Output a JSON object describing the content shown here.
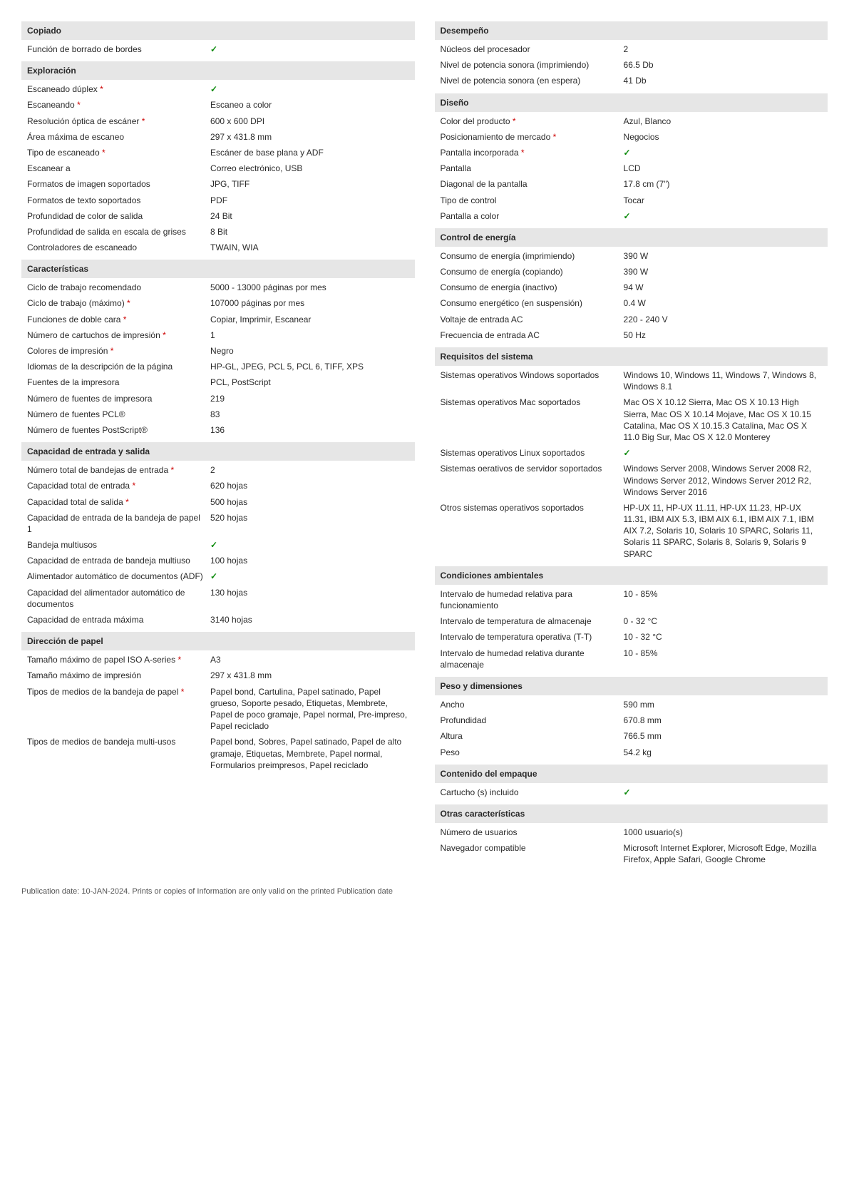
{
  "check_glyph": "✓",
  "asterisk": "*",
  "left": {
    "copiado": {
      "header": "Copiado",
      "rows": [
        {
          "label": "Función de borrado de bordes",
          "value": "✓",
          "check": true
        }
      ]
    },
    "exploracion": {
      "header": "Exploración",
      "rows": [
        {
          "label": "Escaneado dúplex",
          "ast": true,
          "value": "✓",
          "check": true
        },
        {
          "label": "Escaneando",
          "ast": true,
          "value": "Escaneo a color"
        },
        {
          "label": "Resolución óptica de escáner",
          "ast": true,
          "value": "600 x 600 DPI"
        },
        {
          "label": "Área máxima de escaneo",
          "value": "297 x 431.8 mm"
        },
        {
          "label": "Tipo de escaneado",
          "ast": true,
          "value": "Escáner de base plana y ADF"
        },
        {
          "label": "Escanear a",
          "value": "Correo electrónico, USB"
        },
        {
          "label": "Formatos de imagen soportados",
          "value": "JPG, TIFF"
        },
        {
          "label": "Formatos de texto soportados",
          "value": "PDF"
        },
        {
          "label": "Profundidad de color de salida",
          "value": "24 Bit"
        },
        {
          "label": "Profundidad de salida en escala de grises",
          "value": "8 Bit"
        },
        {
          "label": "Controladores de escaneado",
          "value": "TWAIN, WIA"
        }
      ]
    },
    "caracteristicas": {
      "header": "Características",
      "rows": [
        {
          "label": "Ciclo de trabajo recomendado",
          "value": "5000 - 13000 páginas por mes"
        },
        {
          "label": "Ciclo de trabajo (máximo)",
          "ast": true,
          "value": "107000 páginas por mes"
        },
        {
          "label": "Funciones de doble cara",
          "ast": true,
          "value": "Copiar, Imprimir, Escanear"
        },
        {
          "label": "Número de cartuchos de impresión",
          "ast": true,
          "value": "1"
        },
        {
          "label": "Colores de impresión",
          "ast": true,
          "value": "Negro"
        },
        {
          "label": "Idiomas de la descripción de la página",
          "value": "HP-GL, JPEG, PCL 5, PCL 6, TIFF, XPS"
        },
        {
          "label": "Fuentes de la impresora",
          "value": "PCL, PostScript"
        },
        {
          "label": "Número de fuentes de impresora",
          "value": "219"
        },
        {
          "label": "Número de fuentes PCL®",
          "value": "83"
        },
        {
          "label": "Número de fuentes PostScript®",
          "value": "136"
        }
      ]
    },
    "capacidad": {
      "header": "Capacidad de entrada y salida",
      "rows": [
        {
          "label": "Número total de bandejas de entrada",
          "ast": true,
          "value": "2"
        },
        {
          "label": "Capacidad total de entrada",
          "ast": true,
          "value": "620 hojas"
        },
        {
          "label": "Capacidad total de salida",
          "ast": true,
          "value": "500 hojas"
        },
        {
          "label": "Capacidad de entrada de la bandeja de papel 1",
          "value": "520 hojas"
        },
        {
          "label": "Bandeja multiusos",
          "value": "✓",
          "check": true
        },
        {
          "label": "Capacidad de entrada de bandeja multiuso",
          "value": "100 hojas"
        },
        {
          "label": "Alimentador automático de documentos (ADF)",
          "value": "✓",
          "check": true
        },
        {
          "label": "Capacidad del alimentador automático de documentos",
          "value": "130 hojas"
        },
        {
          "label": "Capacidad de entrada máxima",
          "value": "3140 hojas"
        }
      ]
    },
    "direccion": {
      "header": "Dirección de papel",
      "rows": [
        {
          "label": "Tamaño máximo de papel ISO A-series",
          "ast": true,
          "value": "A3"
        },
        {
          "label": "Tamaño máximo de impresión",
          "value": "297 x 431.8 mm"
        },
        {
          "label": "Tipos de medios de la bandeja de papel",
          "ast": true,
          "value": "Papel bond, Cartulina, Papel satinado, Papel grueso, Soporte pesado, Etiquetas, Membrete, Papel de poco gramaje, Papel normal, Pre-impreso, Papel reciclado"
        },
        {
          "label": "Tipos de medios de bandeja multi-usos",
          "value": "Papel bond, Sobres, Papel satinado, Papel de alto gramaje, Etiquetas, Membrete, Papel normal, Formularios preimpresos, Papel reciclado"
        }
      ]
    }
  },
  "right": {
    "desempeno": {
      "header": "Desempeño",
      "rows": [
        {
          "label": "Núcleos del procesador",
          "value": "2"
        },
        {
          "label": "Nivel de potencia sonora (imprimiendo)",
          "value": "66.5 Db"
        },
        {
          "label": "Nivel de potencia sonora (en espera)",
          "value": "41 Db"
        }
      ]
    },
    "diseno": {
      "header": "Diseño",
      "rows": [
        {
          "label": "Color del producto",
          "ast": true,
          "value": "Azul, Blanco"
        },
        {
          "label": "Posicionamiento de mercado",
          "ast": true,
          "value": "Negocios"
        },
        {
          "label": "Pantalla incorporada",
          "ast": true,
          "value": "✓",
          "check": true
        },
        {
          "label": "Pantalla",
          "value": "LCD"
        },
        {
          "label": "Diagonal de la pantalla",
          "value": "17.8 cm (7\")"
        },
        {
          "label": "Tipo de control",
          "value": "Tocar"
        },
        {
          "label": "Pantalla a color",
          "value": "✓",
          "check": true
        }
      ]
    },
    "energia": {
      "header": "Control de energía",
      "rows": [
        {
          "label": "Consumo de energía (imprimiendo)",
          "value": "390 W"
        },
        {
          "label": "Consumo de energía (copiando)",
          "value": "390 W"
        },
        {
          "label": "Consumo de energía (inactivo)",
          "value": "94 W"
        },
        {
          "label": "Consumo energético (en suspensión)",
          "value": "0.4 W"
        },
        {
          "label": "Voltaje de entrada AC",
          "value": "220 - 240 V"
        },
        {
          "label": "Frecuencia de entrada AC",
          "value": "50 Hz"
        }
      ]
    },
    "requisitos": {
      "header": "Requisitos del sistema",
      "rows": [
        {
          "label": "Sistemas operativos Windows soportados",
          "value": "Windows 10, Windows 11, Windows 7, Windows 8, Windows 8.1"
        },
        {
          "label": "Sistemas operativos Mac soportados",
          "value": "Mac OS X 10.12 Sierra, Mac OS X 10.13 High Sierra, Mac OS X 10.14 Mojave, Mac OS X 10.15 Catalina, Mac OS X 10.15.3 Catalina, Mac OS X 11.0 Big Sur, Mac OS X 12.0 Monterey"
        },
        {
          "label": "Sistemas operativos Linux soportados",
          "value": "✓",
          "check": true
        },
        {
          "label": "Sistemas oerativos de servidor soportados",
          "value": "Windows Server 2008, Windows Server 2008 R2, Windows Server 2012, Windows Server 2012 R2, Windows Server 2016"
        },
        {
          "label": "Otros sistemas operativos soportados",
          "value": "HP-UX 11, HP-UX 11.11, HP-UX 11.23, HP-UX 11.31, IBM AIX 5.3, IBM AIX 6.1, IBM AIX 7.1, IBM AIX 7.2, Solaris 10, Solaris 10 SPARC, Solaris 11, Solaris 11 SPARC, Solaris 8, Solaris 9, Solaris 9 SPARC"
        }
      ]
    },
    "ambientales": {
      "header": "Condiciones ambientales",
      "rows": [
        {
          "label": "Intervalo de humedad relativa para funcionamiento",
          "value": "10 - 85%"
        },
        {
          "label": "Intervalo de temperatura de almacenaje",
          "value": "0 - 32 °C"
        },
        {
          "label": "Intervalo de temperatura operativa (T-T)",
          "value": "10 - 32 °C"
        },
        {
          "label": "Intervalo de humedad relativa durante almacenaje",
          "value": "10 - 85%"
        }
      ]
    },
    "peso": {
      "header": "Peso y dimensiones",
      "rows": [
        {
          "label": "Ancho",
          "value": "590 mm"
        },
        {
          "label": "Profundidad",
          "value": "670.8 mm"
        },
        {
          "label": "Altura",
          "value": "766.5 mm"
        },
        {
          "label": "Peso",
          "value": "54.2 kg"
        }
      ]
    },
    "empaque": {
      "header": "Contenido del empaque",
      "rows": [
        {
          "label": "Cartucho (s) incluido",
          "value": "✓",
          "check": true
        }
      ]
    },
    "otras": {
      "header": "Otras características",
      "rows": [
        {
          "label": "Número de usuarios",
          "value": "1000 usuario(s)"
        },
        {
          "label": "Navegador compatible",
          "value": "Microsoft Internet Explorer, Microsoft Edge, Mozilla Firefox, Apple Safari, Google Chrome"
        }
      ]
    }
  },
  "footer": "Publication date: 10-JAN-2024. Prints or copies of Information are only valid on the printed Publication date"
}
